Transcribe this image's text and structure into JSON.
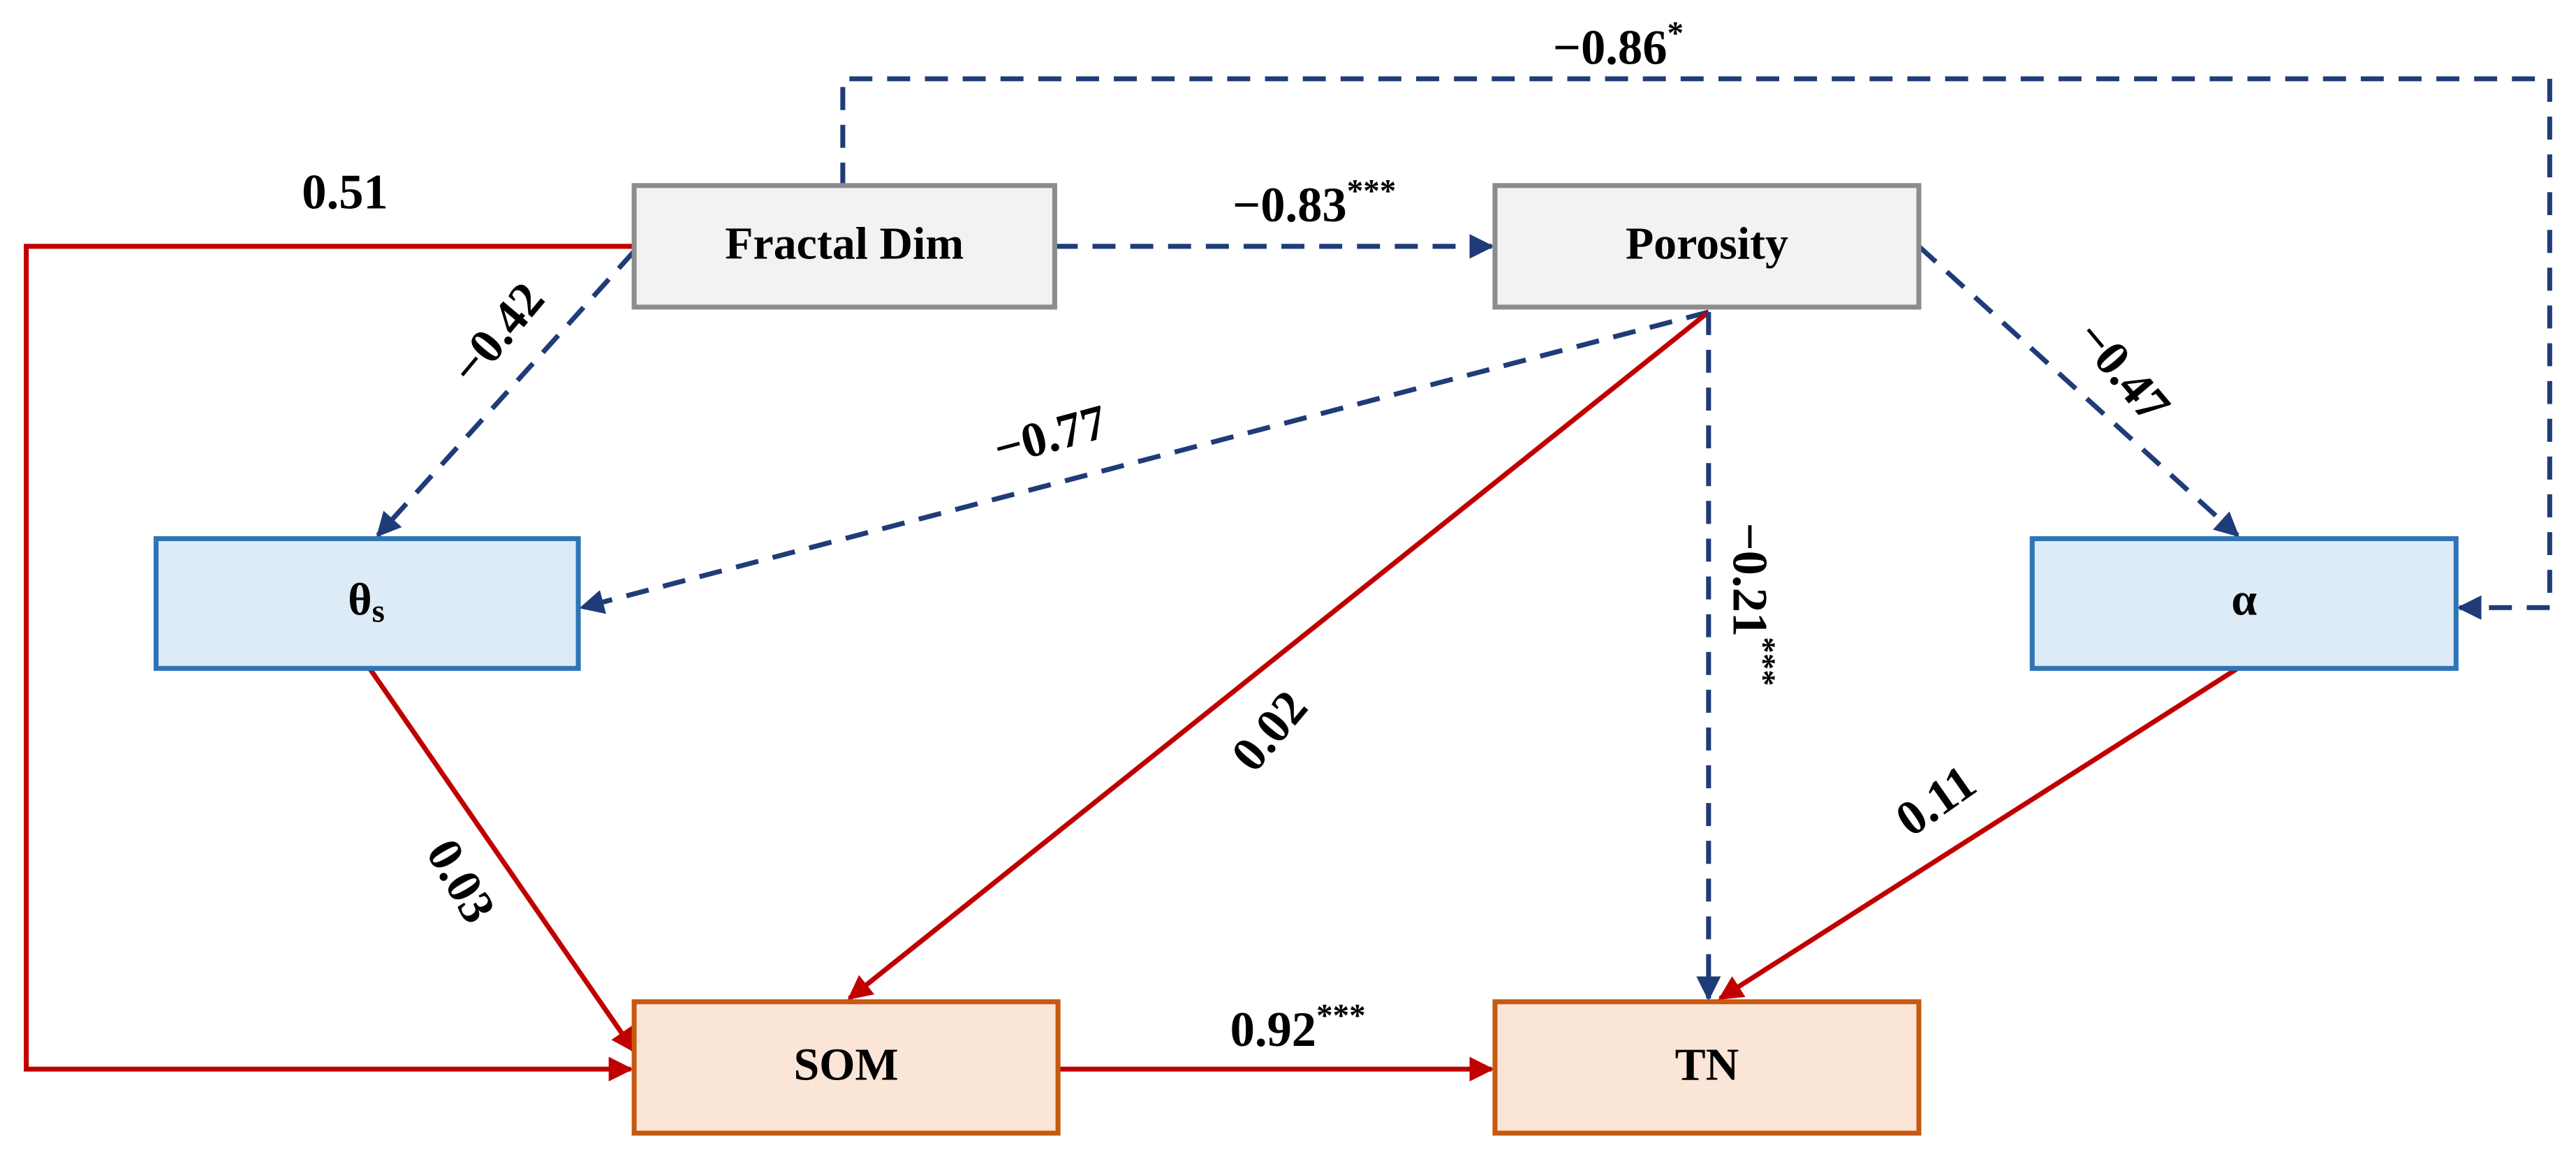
{
  "nodes": [
    {
      "label": "Fractal Dim"
    },
    {
      "label": "Porosity"
    },
    {
      "label": "θ",
      "subscript": "s"
    },
    {
      "label": "α"
    },
    {
      "label": "SOM"
    },
    {
      "label": "TN"
    }
  ],
  "edges": [
    {
      "label": "0.51"
    },
    {
      "label": "−0.42"
    },
    {
      "label": "−0.83",
      "significance": "***"
    },
    {
      "label": "−0.86",
      "significance": "*"
    },
    {
      "label": "−0.77"
    },
    {
      "label": "0.02"
    },
    {
      "label": "−0.21",
      "significance": "***"
    },
    {
      "label": "−0.47"
    },
    {
      "label": "0.03"
    },
    {
      "label": "0.11"
    },
    {
      "label": "0.92",
      "significance": "***"
    }
  ]
}
